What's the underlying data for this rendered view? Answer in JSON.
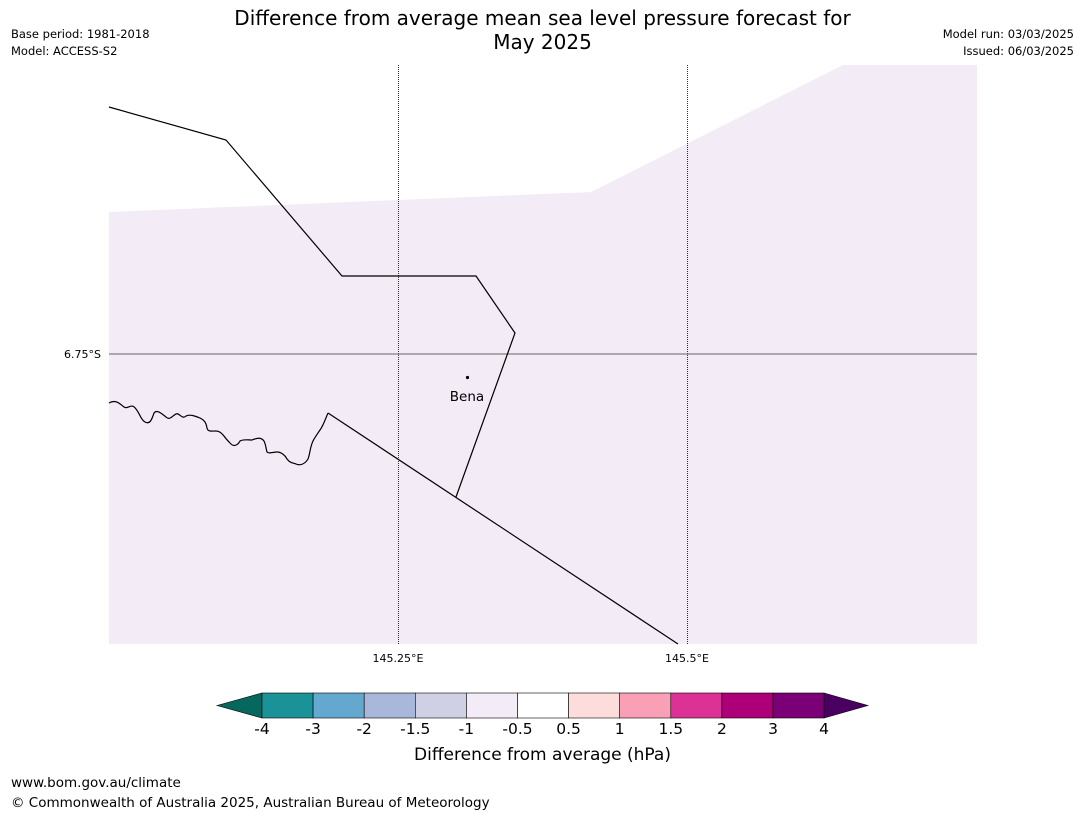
{
  "header": {
    "title_line1": "Difference from average mean sea level pressure forecast for",
    "title_line2": "May 2025",
    "base_period": "Base period: 1981-2018",
    "model": "Model: ACCESS-S2",
    "model_run": "Model run: 03/03/2025",
    "issued": "Issued: 06/03/2025"
  },
  "map": {
    "lat_label": "6.75°S",
    "lon_labels": [
      "145.25°E",
      "145.5°E"
    ],
    "place_label": "Bena",
    "field_color": "#f3ebf5"
  },
  "colorbar": {
    "title": "Difference from average (hPa)",
    "ticks": [
      "-4",
      "-3",
      "-2",
      "-1.5",
      "-1",
      "-0.5",
      "0.5",
      "1",
      "1.5",
      "2",
      "3",
      "4"
    ],
    "colors": [
      "#05675d",
      "#1a9298",
      "#64a8d0",
      "#a8b8da",
      "#d0d0e4",
      "#f3ebf5",
      "#ffffff",
      "#fddcdc",
      "#f9a0b6",
      "#dc3296",
      "#ad0078",
      "#7b0078",
      "#4a0061"
    ]
  },
  "footer": {
    "url": "www.bom.gov.au/climate",
    "copyright": "© Commonwealth of Australia 2025, Australian Bureau of Meteorology"
  }
}
